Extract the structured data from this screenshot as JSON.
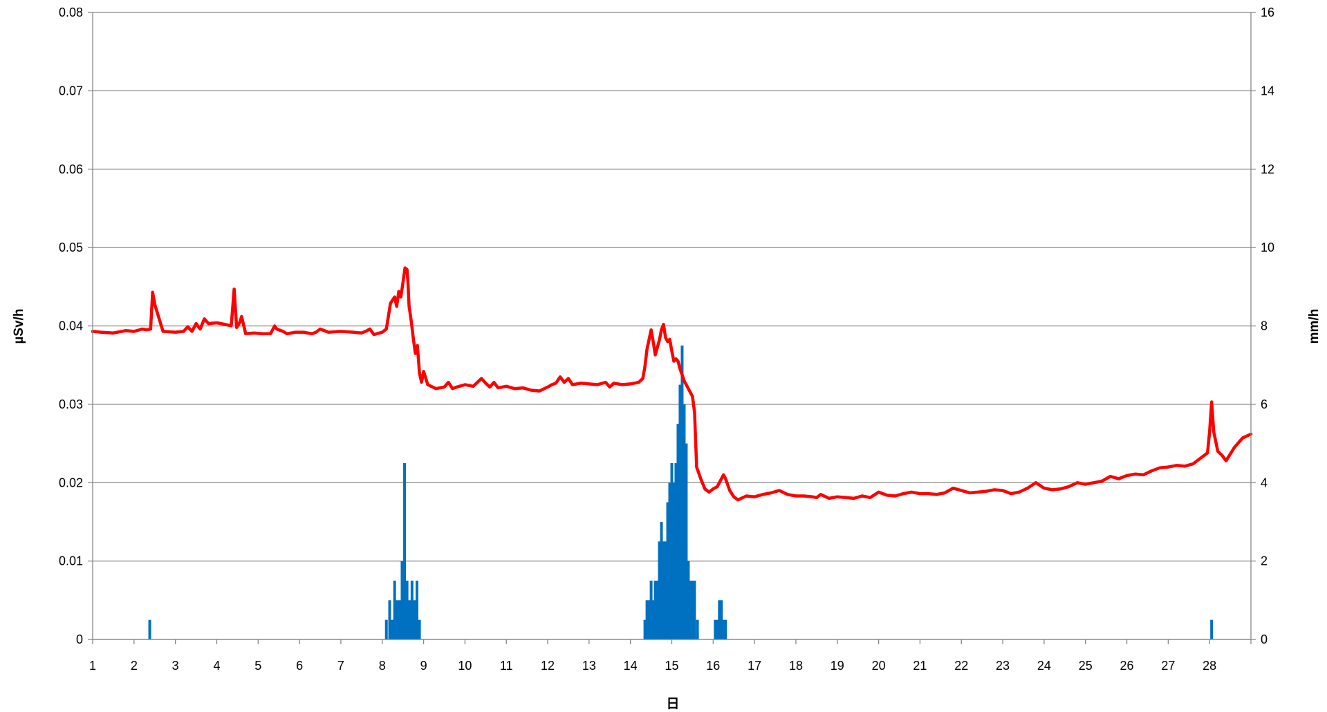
{
  "chart_data": {
    "type": "line+bar",
    "xlabel": "日",
    "ylabel_left": "µSv/h",
    "ylabel_right": "mm/h",
    "x_ticks": [
      1,
      2,
      3,
      4,
      5,
      6,
      7,
      8,
      9,
      10,
      11,
      12,
      13,
      14,
      15,
      16,
      17,
      18,
      19,
      20,
      21,
      22,
      23,
      24,
      25,
      26,
      27,
      28
    ],
    "xlim": [
      1,
      29
    ],
    "ylim_left": [
      0,
      0.08
    ],
    "y_ticks_left": [
      "0",
      "0.01",
      "0.02",
      "0.03",
      "0.04",
      "0.05",
      "0.06",
      "0.07",
      "0.08"
    ],
    "ylim_right": [
      0,
      16
    ],
    "y_ticks_right": [
      "0",
      "2",
      "4",
      "6",
      "8",
      "10",
      "12",
      "14",
      "16"
    ],
    "grid": true,
    "colors": {
      "line": "#ff0000",
      "bars": "#0070c0",
      "grid": "#868686"
    },
    "series": [
      {
        "kind": "line",
        "axis": "left",
        "x": [
          1.0,
          1.2,
          1.5,
          1.8,
          2.0,
          2.2,
          2.3,
          2.4,
          2.45,
          2.5,
          2.7,
          3.0,
          3.2,
          3.3,
          3.4,
          3.5,
          3.6,
          3.7,
          3.8,
          4.0,
          4.2,
          4.35,
          4.42,
          4.48,
          4.55,
          4.6,
          4.7,
          4.9,
          5.1,
          5.3,
          5.4,
          5.45,
          5.6,
          5.7,
          5.9,
          6.1,
          6.3,
          6.4,
          6.5,
          6.7,
          7.0,
          7.3,
          7.5,
          7.6,
          7.7,
          7.8,
          8.0,
          8.05,
          8.1,
          8.2,
          8.3,
          8.35,
          8.4,
          8.45,
          8.5,
          8.55,
          8.6,
          8.62,
          8.65,
          8.7,
          8.75,
          8.8,
          8.85,
          8.9,
          8.95,
          9.0,
          9.1,
          9.3,
          9.5,
          9.6,
          9.7,
          9.8,
          10.0,
          10.2,
          10.4,
          10.5,
          10.6,
          10.7,
          10.8,
          11.0,
          11.2,
          11.4,
          11.6,
          11.8,
          12.0,
          12.1,
          12.2,
          12.3,
          12.4,
          12.5,
          12.6,
          12.8,
          13.0,
          13.2,
          13.4,
          13.5,
          13.6,
          13.8,
          14.0,
          14.2,
          14.3,
          14.35,
          14.4,
          14.5,
          14.55,
          14.6,
          14.7,
          14.75,
          14.8,
          14.85,
          14.9,
          14.95,
          15.0,
          15.05,
          15.1,
          15.15,
          15.2,
          15.3,
          15.4,
          15.5,
          15.55,
          15.6,
          15.7,
          15.8,
          15.9,
          16.0,
          16.1,
          16.2,
          16.25,
          16.3,
          16.4,
          16.5,
          16.6,
          16.8,
          17.0,
          17.2,
          17.4,
          17.6,
          17.8,
          18.0,
          18.2,
          18.4,
          18.5,
          18.6,
          18.8,
          19.0,
          19.2,
          19.4,
          19.6,
          19.8,
          20.0,
          20.2,
          20.4,
          20.6,
          20.8,
          21.0,
          21.2,
          21.4,
          21.6,
          21.8,
          22.0,
          22.2,
          22.4,
          22.6,
          22.8,
          23.0,
          23.2,
          23.4,
          23.6,
          23.8,
          24.0,
          24.2,
          24.4,
          24.6,
          24.8,
          25.0,
          25.2,
          25.4,
          25.6,
          25.8,
          26.0,
          26.2,
          26.4,
          26.6,
          26.8,
          27.0,
          27.2,
          27.4,
          27.6,
          27.8,
          27.95,
          28.0,
          28.05,
          28.1,
          28.2,
          28.3,
          28.4,
          28.6,
          28.8,
          29.0
        ],
        "y": [
          0.0393,
          0.0392,
          0.0391,
          0.0394,
          0.0393,
          0.0396,
          0.0395,
          0.0396,
          0.0443,
          0.0428,
          0.0393,
          0.0392,
          0.0393,
          0.0399,
          0.0393,
          0.0403,
          0.0396,
          0.0409,
          0.0403,
          0.0404,
          0.0402,
          0.04,
          0.0447,
          0.0398,
          0.0404,
          0.0412,
          0.039,
          0.0391,
          0.039,
          0.039,
          0.04,
          0.0396,
          0.0393,
          0.039,
          0.0392,
          0.0392,
          0.039,
          0.0392,
          0.0396,
          0.0392,
          0.0393,
          0.0392,
          0.0391,
          0.0393,
          0.0396,
          0.0389,
          0.0392,
          0.0394,
          0.0396,
          0.0429,
          0.0437,
          0.0425,
          0.0444,
          0.0437,
          0.0455,
          0.0474,
          0.0472,
          0.0458,
          0.0425,
          0.0407,
          0.0385,
          0.0365,
          0.0375,
          0.034,
          0.0328,
          0.0342,
          0.0325,
          0.032,
          0.0322,
          0.0328,
          0.032,
          0.0322,
          0.0325,
          0.0323,
          0.0333,
          0.0327,
          0.0322,
          0.0328,
          0.0321,
          0.0323,
          0.032,
          0.0321,
          0.0318,
          0.0317,
          0.0322,
          0.0325,
          0.0327,
          0.0335,
          0.0328,
          0.0333,
          0.0325,
          0.0327,
          0.0326,
          0.0325,
          0.0328,
          0.0322,
          0.0327,
          0.0325,
          0.0326,
          0.0328,
          0.0333,
          0.0348,
          0.037,
          0.0395,
          0.038,
          0.0363,
          0.0382,
          0.0395,
          0.0402,
          0.0385,
          0.038,
          0.0383,
          0.0368,
          0.0355,
          0.0358,
          0.0355,
          0.0345,
          0.033,
          0.032,
          0.031,
          0.029,
          0.022,
          0.0205,
          0.0192,
          0.0188,
          0.0192,
          0.0195,
          0.0205,
          0.021,
          0.0205,
          0.019,
          0.0182,
          0.0178,
          0.0183,
          0.0182,
          0.0185,
          0.0187,
          0.019,
          0.0185,
          0.0183,
          0.0183,
          0.0182,
          0.0181,
          0.0185,
          0.018,
          0.0182,
          0.0181,
          0.018,
          0.0183,
          0.0181,
          0.0188,
          0.0184,
          0.0183,
          0.0186,
          0.0188,
          0.0186,
          0.0186,
          0.0185,
          0.0187,
          0.0193,
          0.019,
          0.0187,
          0.0188,
          0.0189,
          0.0191,
          0.019,
          0.0186,
          0.0188,
          0.0193,
          0.02,
          0.0193,
          0.0191,
          0.0192,
          0.0195,
          0.02,
          0.0198,
          0.02,
          0.0202,
          0.0208,
          0.0205,
          0.0209,
          0.0211,
          0.021,
          0.0215,
          0.0219,
          0.022,
          0.0222,
          0.0221,
          0.0224,
          0.0232,
          0.0238,
          0.0265,
          0.0303,
          0.0265,
          0.024,
          0.0235,
          0.0228,
          0.0245,
          0.0257,
          0.0262
        ]
      },
      {
        "kind": "bar",
        "axis": "right",
        "x": [
          2.38,
          8.1,
          8.18,
          8.24,
          8.3,
          8.36,
          8.42,
          8.48,
          8.54,
          8.6,
          8.66,
          8.72,
          8.78,
          8.84,
          8.9,
          14.35,
          14.4,
          14.45,
          14.5,
          14.55,
          14.6,
          14.65,
          14.7,
          14.75,
          14.8,
          14.85,
          14.9,
          14.95,
          15.0,
          15.05,
          15.1,
          15.15,
          15.2,
          15.25,
          15.3,
          15.35,
          15.4,
          15.45,
          15.5,
          15.55,
          15.62,
          16.05,
          16.1,
          16.15,
          16.2,
          16.25,
          16.3,
          28.05
        ],
        "y": [
          0.5,
          0.5,
          1.0,
          0.5,
          1.5,
          1.0,
          1.0,
          2.0,
          4.5,
          1.5,
          1.0,
          1.5,
          1.0,
          1.5,
          0.5,
          0.5,
          1.0,
          1.0,
          1.5,
          1.0,
          1.5,
          1.5,
          2.5,
          3.0,
          2.5,
          2.5,
          3.5,
          4.0,
          4.5,
          4.0,
          4.5,
          5.5,
          6.5,
          7.5,
          6.0,
          5.0,
          2.0,
          1.5,
          1.5,
          1.5,
          0.5,
          0.5,
          0.5,
          1.0,
          1.0,
          0.5,
          0.5,
          0.5
        ]
      }
    ]
  }
}
